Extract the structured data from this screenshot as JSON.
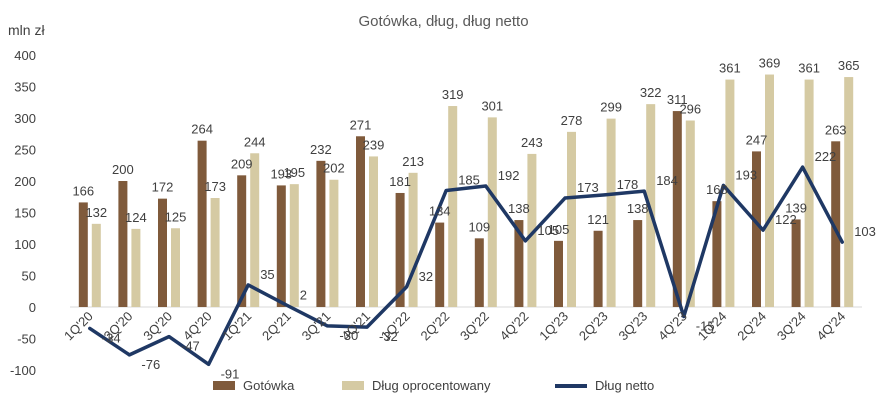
{
  "chart_data": {
    "type": "bar",
    "title": "Gotówka, dług, dług netto",
    "ylabel": "mln zł",
    "ylim": [
      -100,
      400
    ],
    "yticks": [
      "-100",
      "-50",
      "0",
      "50",
      "100",
      "150",
      "200",
      "250",
      "300",
      "350",
      "400"
    ],
    "categories": [
      "1Q'20",
      "2Q'20",
      "3Q'20",
      "4Q'20",
      "1Q'21",
      "2Q'21",
      "3Q'21",
      "4Q'21",
      "1Q'22",
      "2Q'22",
      "3Q'22",
      "4Q'22",
      "1Q'23",
      "2Q'23",
      "3Q'23",
      "4Q'23",
      "1Q'24",
      "2Q'24",
      "3Q'24",
      "4Q'24"
    ],
    "series": [
      {
        "name": "Gotówka",
        "kind": "bar",
        "color": "#7f5a3b",
        "values": [
          166,
          200,
          172,
          264,
          209,
          193,
          232,
          271,
          181,
          134,
          109,
          138,
          105,
          121,
          138,
          311,
          168,
          247,
          139,
          263
        ]
      },
      {
        "name": "Dług oprocentowany",
        "kind": "bar",
        "color": "#d5caa3",
        "values": [
          132,
          124,
          125,
          173,
          244,
          195,
          202,
          239,
          213,
          319,
          301,
          243,
          278,
          299,
          322,
          296,
          361,
          369,
          361,
          365
        ]
      },
      {
        "name": "Dług netto",
        "kind": "line",
        "color": "#1f3864",
        "values": [
          -34,
          -76,
          -47,
          -91,
          35,
          2,
          -30,
          -32,
          32,
          185,
          192,
          105,
          173,
          178,
          184,
          -15,
          193,
          122,
          222,
          103
        ]
      }
    ],
    "grid": false,
    "legend_position": "bottom"
  }
}
